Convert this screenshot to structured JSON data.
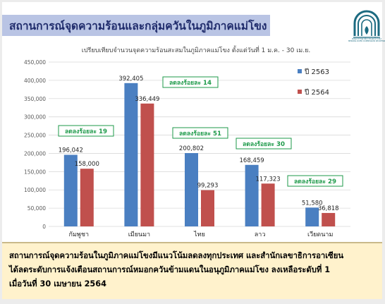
{
  "header": {
    "title": "สถานการณ์จุดความร้อนและกลุ่มควันในภูมิภาคแม่โขง"
  },
  "logo": {
    "icon": "mekong-river-commission-logo",
    "caption": "คณะกรรมาธิการแม่น้ำโขง",
    "subcaption": "MEKONG RIVER COMMISSION SECRETARIAT",
    "color": "#1b6a80"
  },
  "chart_data": {
    "type": "bar",
    "title": "เปรียบเทียบจำนวนจุดความร้อนสะสมในภูมิภาคแม่โขง ตั้งแต่วันที่ 1 ม.ค. - 30 เม.ย.",
    "categories": [
      "กัมพูชา",
      "เมียนมา",
      "ไทย",
      "ลาว",
      "เวียดนาม"
    ],
    "series": [
      {
        "name": "ปี 2563",
        "color": "#4a7fc1",
        "values": [
          196042,
          392405,
          200802,
          168459,
          51580
        ]
      },
      {
        "name": "ปี 2564",
        "color": "#c0504d",
        "values": [
          158000,
          336449,
          99293,
          117323,
          36818
        ]
      }
    ],
    "value_labels": {
      "ปี 2563": [
        "196,042",
        "392,405",
        "200,802",
        "168,459",
        "51,580"
      ],
      "ปี 2564": [
        "158,000",
        "336,449",
        "99,293",
        "117,323",
        "36,818"
      ]
    },
    "ylim": [
      0,
      450000
    ],
    "yticks": [
      0,
      50000,
      100000,
      150000,
      200000,
      250000,
      300000,
      350000,
      400000,
      450000
    ],
    "ytick_labels": [
      "0",
      "50,000",
      "100,000",
      "150,000",
      "200,000",
      "250,000",
      "300,000",
      "350,000",
      "400,000",
      "450,000"
    ],
    "grid": true,
    "legend": "top-right",
    "annotations": [
      "ลดลงร้อยละ 19",
      "ลดลงร้อยละ 14",
      "ลดลงร้อยละ 51",
      "ลดลงร้อยละ 30",
      "ลดลงร้อยละ 29"
    ],
    "annotation_style": {
      "text_color": "#1e9a4a",
      "border_color": "#1e9a4a"
    }
  },
  "footer": {
    "lines": [
      "สถานการณ์จุดความร้อนในภูมิภาคแม่โขงมีแนวโน้มลดลงทุกประเทศ และสำนักเลขาธิการอาเซียน",
      "ได้ลดระดับการแจ้งเตือนสถานการณ์หมอกควันข้ามแดนในอนุภูมิภาคแม่โขง ลงเหลือระดับที่ 1",
      "เมื่อวันที่ 30 เมษายน 2564"
    ]
  }
}
